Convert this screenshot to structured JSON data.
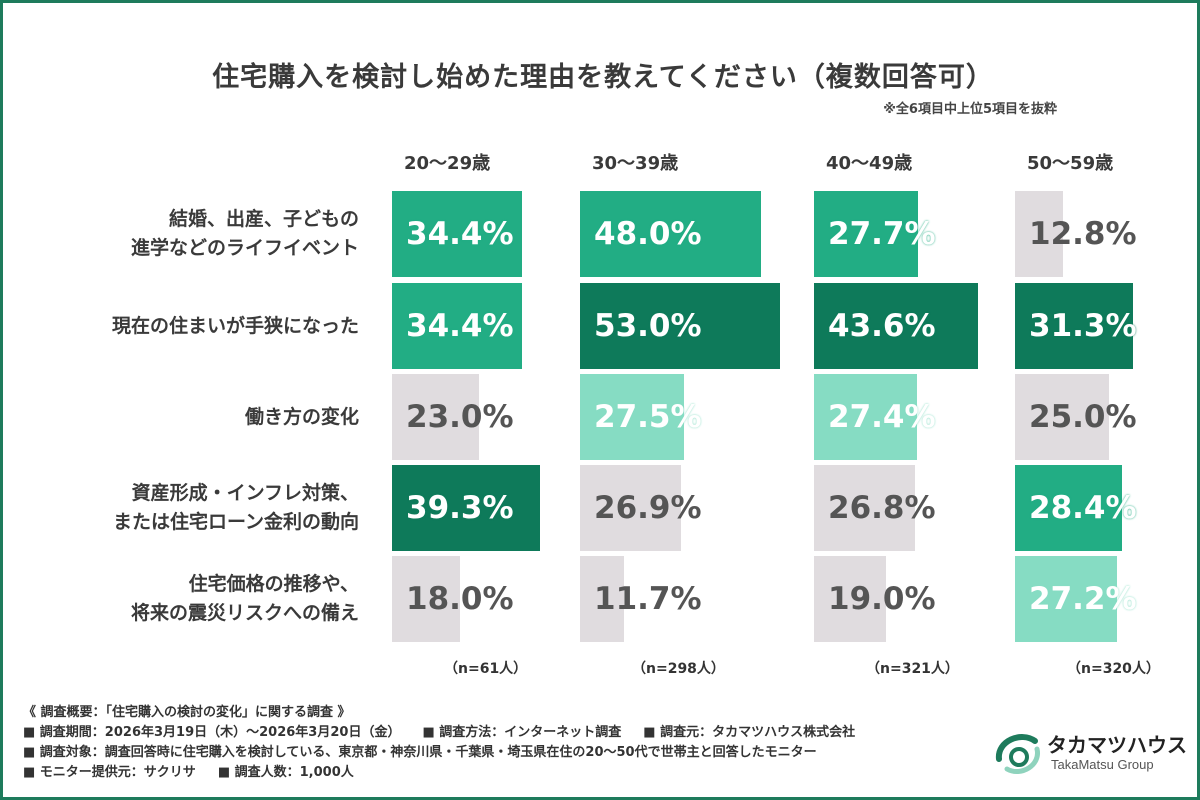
{
  "chart_data": {
    "type": "bar",
    "title": "住宅購入を検討し始めた理由を教えてください（複数回答可）",
    "note": "※全6項目中上位5項目を抜粋",
    "categories": [
      [
        "結婚、出産、子どもの",
        "進学などのライフイベント"
      ],
      [
        "現在の住まいが手狭になった"
      ],
      [
        "働き方の変化"
      ],
      [
        "資産形成・インフレ対策、",
        "または住宅ローン金利の動向"
      ],
      [
        "住宅価格の推移や、",
        "将来の震災リスクへの備え"
      ]
    ],
    "value_suffix": "%",
    "xlim": [
      0,
      60
    ],
    "series": [
      {
        "name": "20〜29歳",
        "n_label": "（n=61人）",
        "values": [
          34.4,
          34.4,
          23.0,
          39.3,
          18.0
        ]
      },
      {
        "name": "30〜39歳",
        "n_label": "（n=298人）",
        "values": [
          48.0,
          53.0,
          27.5,
          26.9,
          11.7
        ]
      },
      {
        "name": "40〜49歳",
        "n_label": "（n=321人）",
        "values": [
          27.7,
          43.6,
          27.4,
          26.8,
          19.0
        ]
      },
      {
        "name": "50〜59歳",
        "n_label": "（n=320人）",
        "values": [
          12.8,
          31.3,
          25.0,
          28.4,
          27.2
        ]
      }
    ],
    "colors": {
      "rank1": "#0e7a5a",
      "rank2": "#22ad84",
      "rank3": "#86dcc3",
      "other": "#e0dcdf",
      "label_light": "#ffffff",
      "label_dark": "#555555"
    }
  },
  "footer": {
    "lines": [
      [
        "《 調査概要：「住宅購入の検討の変化」に関する調査 》"
      ],
      [
        "■ 調査期間：2026年3月19日（木）〜2026年3月20日（金）",
        "■ 調査方法：インターネット調査",
        "■ 調査元：タカマツハウス株式会社"
      ],
      [
        "■ 調査対象：調査回答時に住宅購入を検討している、東京都・神奈川県・千葉県・埼玉県在住の20〜50代で世帯主と回答したモニター"
      ],
      [
        "■ モニター提供元：サクリサ",
        "■ 調査人数：1,000人"
      ]
    ]
  },
  "logo": {
    "name": "タカマツハウス",
    "sub": "TakaMatsu Group",
    "colors": {
      "mark": "#1e7b5c",
      "mark_light": "#8fd3bd"
    }
  }
}
